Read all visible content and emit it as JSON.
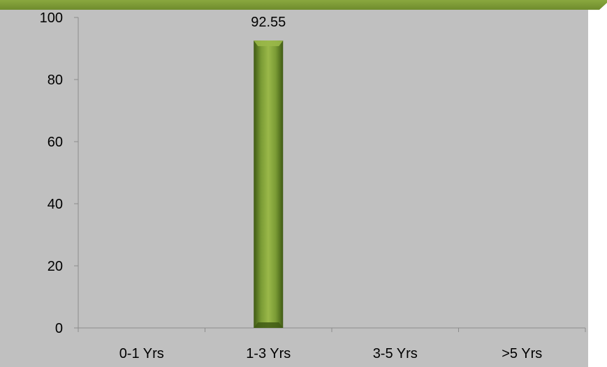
{
  "colors": {
    "banner": "#7d9a37",
    "plot_bg": "#c0c0c0",
    "right_strip": "#ffffff",
    "bar_light": "#9ab849",
    "bar_mid": "#6e8f2c",
    "bar_dark": "#3f5a14",
    "axis": "#8c8c8c"
  },
  "chart_data": {
    "type": "bar",
    "categories": [
      "0-1 Yrs",
      "1-3 Yrs",
      "3-5 Yrs",
      ">5 Yrs"
    ],
    "values": [
      null,
      92.55,
      null,
      null
    ],
    "data_labels": [
      "",
      "92.55",
      "",
      ""
    ],
    "ylim": [
      0,
      100
    ],
    "yticks": [
      0,
      20,
      40,
      60,
      80,
      100
    ],
    "ytick_labels": [
      "0",
      "20",
      "40",
      "60",
      "80",
      "100"
    ],
    "grid": false,
    "legend": "none"
  }
}
